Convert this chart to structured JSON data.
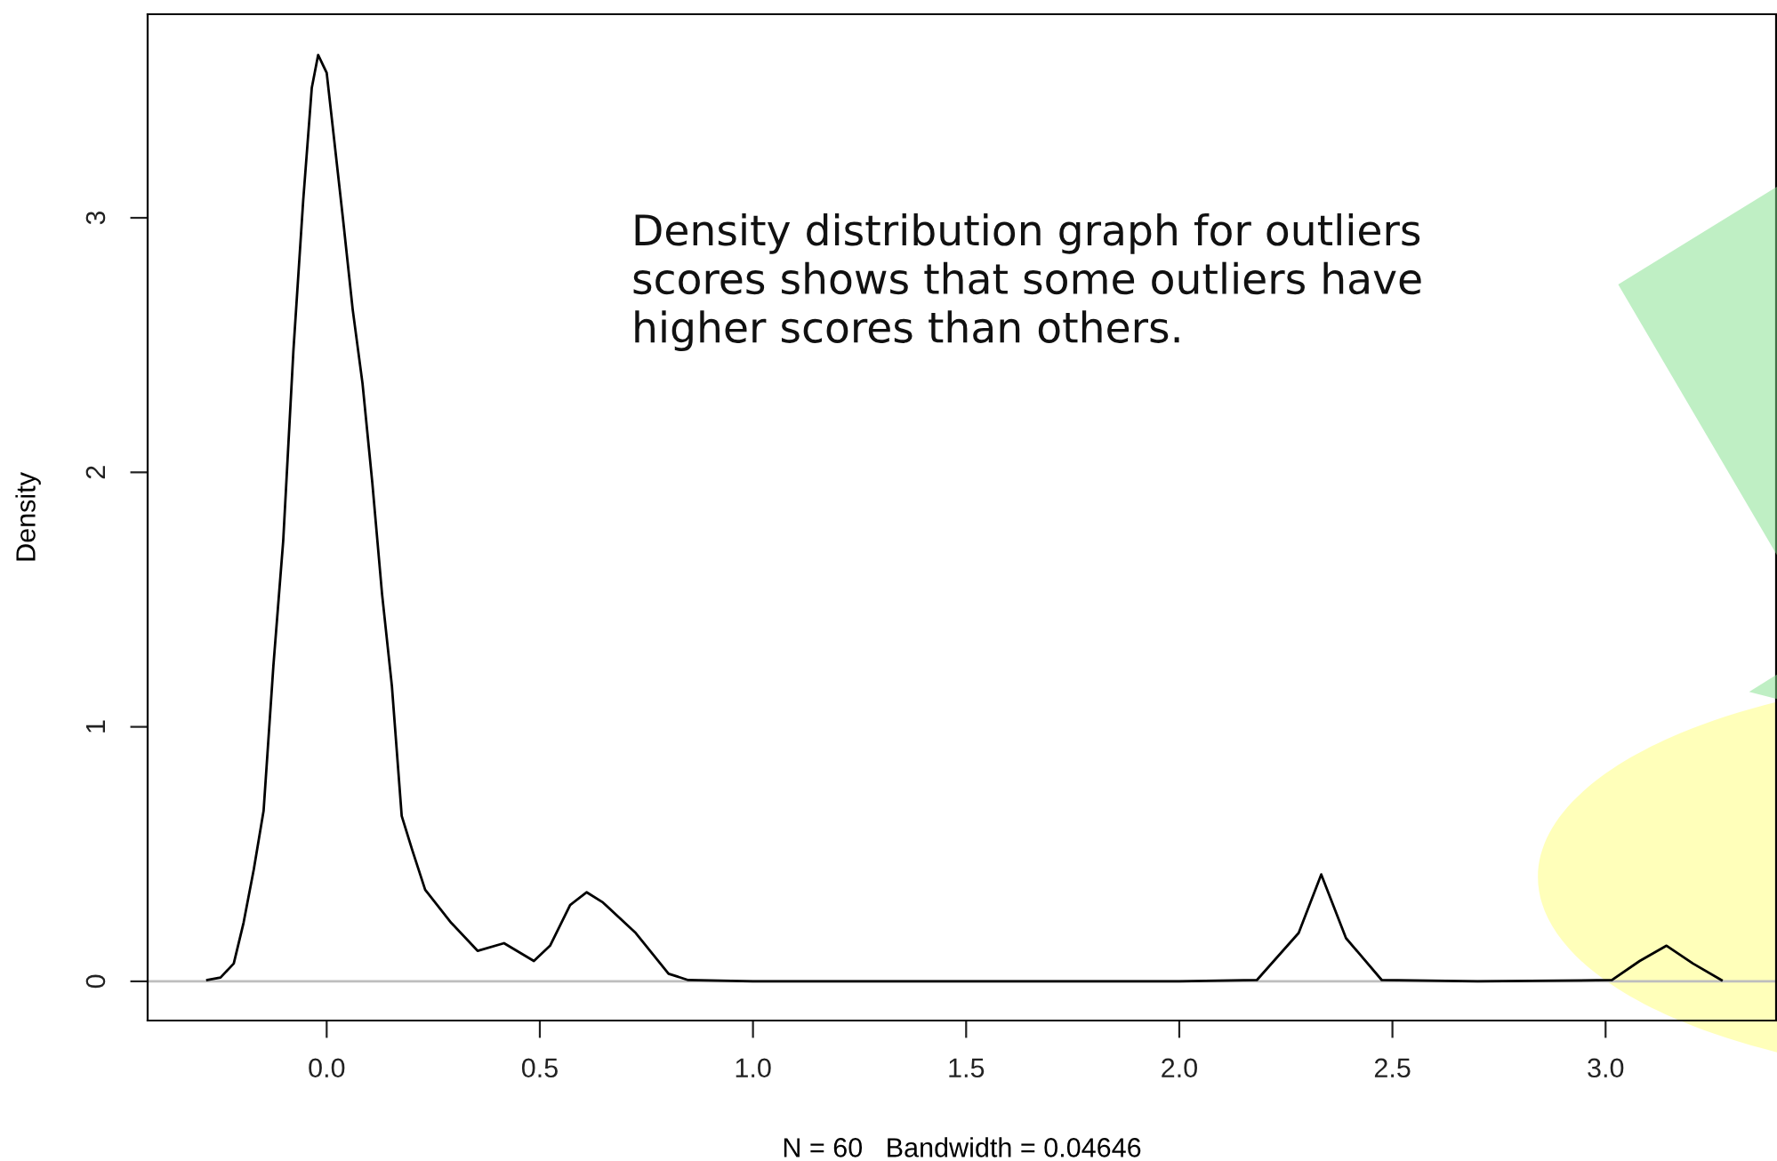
{
  "chart_data": {
    "type": "line",
    "xlabel": "N = 60   Bandwidth = 0.04646",
    "ylabel": "Density",
    "x": [
      -0.28,
      -0.249,
      -0.218,
      -0.195,
      -0.171,
      -0.148,
      -0.125,
      -0.102,
      -0.078,
      -0.055,
      -0.035,
      -0.02,
      0.0,
      0.014,
      0.038,
      0.061,
      0.084,
      0.107,
      0.13,
      0.153,
      0.176,
      0.2,
      0.231,
      0.292,
      0.354,
      0.416,
      0.486,
      0.524,
      0.571,
      0.61,
      0.648,
      0.725,
      0.802,
      0.848,
      1.0,
      1.5,
      2.0,
      2.182,
      2.28,
      2.333,
      2.391,
      2.475,
      2.7,
      3.015,
      3.08,
      3.143,
      3.205,
      3.272
    ],
    "series": [
      {
        "color": "#000000",
        "values": [
          0.005,
          0.015,
          0.07,
          0.23,
          0.44,
          0.67,
          1.24,
          1.73,
          2.48,
          3.07,
          3.51,
          3.64,
          3.57,
          3.36,
          3.0,
          2.64,
          2.35,
          1.96,
          1.52,
          1.16,
          0.65,
          0.52,
          0.36,
          0.23,
          0.12,
          0.15,
          0.08,
          0.14,
          0.3,
          0.35,
          0.31,
          0.19,
          0.03,
          0.005,
          0,
          0,
          0,
          0.005,
          0.19,
          0.42,
          0.17,
          0.005,
          0,
          0.005,
          0.08,
          0.14,
          0.07,
          0.005
        ]
      }
    ],
    "xlim": [
      -0.42,
      3.4
    ],
    "ylim": [
      -0.154,
      3.8
    ],
    "xticks": [
      {
        "value": 0,
        "label": "0.0"
      },
      {
        "value": 0.5,
        "label": "0.5"
      },
      {
        "value": 1,
        "label": "1.0"
      },
      {
        "value": 1.5,
        "label": "1.5"
      },
      {
        "value": 2,
        "label": "2.0"
      },
      {
        "value": 2.5,
        "label": "2.5"
      },
      {
        "value": 3,
        "label": "3.0"
      }
    ],
    "yticks": [
      0,
      1,
      2,
      3
    ],
    "ref_lines": [
      {
        "axis": "y",
        "value": 0,
        "color": "#bebebe"
      }
    ],
    "annotations": [
      "Density distribution graph for outliers\nscores shows that some outliers have\nhigher scores than others."
    ],
    "grid": false,
    "legend": false,
    "marker": "none",
    "line_style": "solid"
  }
}
